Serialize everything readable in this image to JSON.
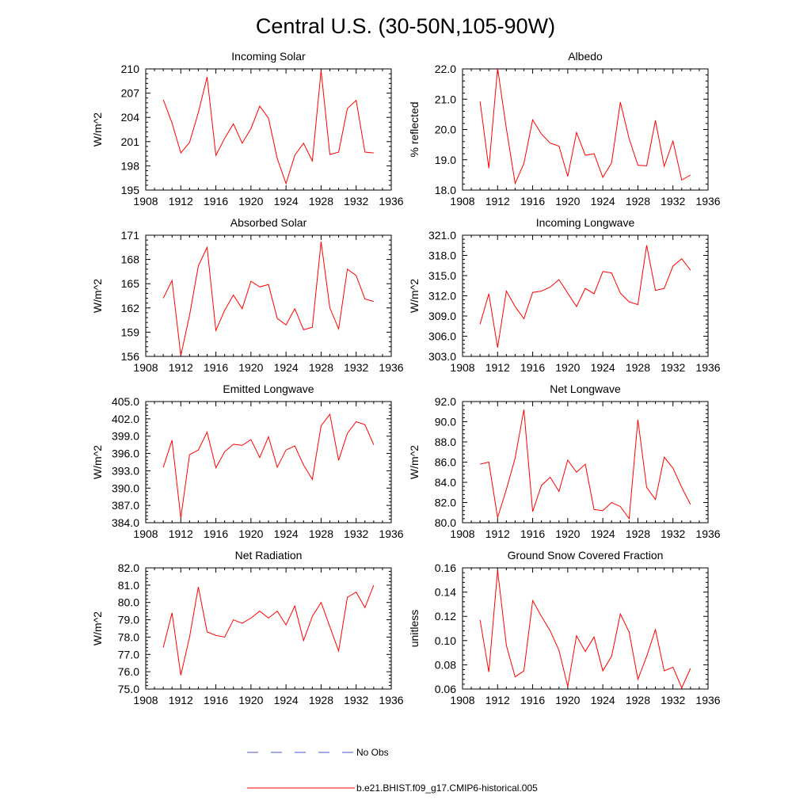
{
  "title": "Central U.S. (30-50N,105-90W)",
  "colors": {
    "model_line": "#ff0000",
    "obs_line": "#4a57c8",
    "axis": "#000000"
  },
  "legend": {
    "entries": [
      {
        "label": "No Obs",
        "style": "dashed",
        "color": "#4a57c8"
      },
      {
        "label": "b.e21.BHIST.f09_g17.CMIP6-historical.005",
        "style": "solid",
        "color": "#ff0000"
      }
    ]
  },
  "chart_data": [
    {
      "type": "line",
      "title": "Incoming Solar",
      "ylabel": "W/m^2",
      "xlim": [
        1908,
        1936
      ],
      "ylim": [
        195,
        210
      ],
      "xticks": [
        1908,
        1912,
        1916,
        1920,
        1924,
        1928,
        1932,
        1936
      ],
      "yticks": [
        195,
        198,
        201,
        204,
        207,
        210
      ],
      "ydecimals": 0,
      "x": [
        1910,
        1911,
        1912,
        1913,
        1914,
        1915,
        1916,
        1917,
        1918,
        1919,
        1920,
        1921,
        1922,
        1923,
        1924,
        1925,
        1926,
        1927,
        1928,
        1929,
        1930,
        1931,
        1932,
        1933,
        1934
      ],
      "series": [
        {
          "name": "b.e21.BHIST.f09_g17.CMIP6-historical.005",
          "values": [
            206.2,
            203.3,
            199.6,
            200.9,
            204.6,
            209.0,
            199.3,
            201.4,
            203.2,
            200.8,
            202.6,
            205.4,
            203.9,
            198.9,
            195.8,
            199.3,
            200.8,
            198.6,
            209.8,
            199.4,
            199.7,
            205.1,
            206.1,
            199.7,
            199.6
          ]
        }
      ]
    },
    {
      "type": "line",
      "title": "Albedo",
      "ylabel": "% reflected",
      "xlim": [
        1908,
        1936
      ],
      "ylim": [
        18.0,
        22.0
      ],
      "xticks": [
        1908,
        1912,
        1916,
        1920,
        1924,
        1928,
        1932,
        1936
      ],
      "yticks": [
        18.0,
        19.0,
        20.0,
        21.0,
        22.0
      ],
      "ydecimals": 1,
      "x": [
        1910,
        1911,
        1912,
        1913,
        1914,
        1915,
        1916,
        1917,
        1918,
        1919,
        1920,
        1921,
        1922,
        1923,
        1924,
        1925,
        1926,
        1927,
        1928,
        1929,
        1930,
        1931,
        1932,
        1933,
        1934
      ],
      "series": [
        {
          "name": "b.e21.BHIST.f09_g17.CMIP6-historical.005",
          "values": [
            20.93,
            18.72,
            22.02,
            20.03,
            18.22,
            18.88,
            20.32,
            19.85,
            19.55,
            19.45,
            18.45,
            19.9,
            19.15,
            19.2,
            18.42,
            18.9,
            20.9,
            19.7,
            18.82,
            18.8,
            20.3,
            18.78,
            19.62,
            18.33,
            18.5
          ]
        }
      ]
    },
    {
      "type": "line",
      "title": "Absorbed Solar",
      "ylabel": "W/m^2",
      "xlim": [
        1908,
        1936
      ],
      "ylim": [
        156,
        171
      ],
      "xticks": [
        1908,
        1912,
        1916,
        1920,
        1924,
        1928,
        1932,
        1936
      ],
      "yticks": [
        156,
        159,
        162,
        165,
        168,
        171
      ],
      "ydecimals": 0,
      "x": [
        1910,
        1911,
        1912,
        1913,
        1914,
        1915,
        1916,
        1917,
        1918,
        1919,
        1920,
        1921,
        1922,
        1923,
        1924,
        1925,
        1926,
        1927,
        1928,
        1929,
        1930,
        1931,
        1932,
        1933,
        1934
      ],
      "series": [
        {
          "name": "b.e21.BHIST.f09_g17.CMIP6-historical.005",
          "values": [
            163.2,
            165.4,
            156.1,
            161.1,
            167.2,
            169.5,
            159.2,
            161.7,
            163.6,
            161.9,
            165.3,
            164.6,
            164.9,
            160.7,
            159.9,
            161.9,
            159.3,
            159.6,
            170.2,
            162.0,
            159.4,
            166.8,
            166.0,
            163.1,
            162.8
          ]
        }
      ]
    },
    {
      "type": "line",
      "title": "Incoming Longwave",
      "ylabel": "W/m^2",
      "xlim": [
        1908,
        1936
      ],
      "ylim": [
        303.0,
        321.0
      ],
      "xticks": [
        1908,
        1912,
        1916,
        1920,
        1924,
        1928,
        1932,
        1936
      ],
      "yticks": [
        303.0,
        306.0,
        309.0,
        312.0,
        315.0,
        318.0,
        321.0
      ],
      "ydecimals": 1,
      "x": [
        1910,
        1911,
        1912,
        1913,
        1914,
        1915,
        1916,
        1917,
        1918,
        1919,
        1920,
        1921,
        1922,
        1923,
        1924,
        1925,
        1926,
        1927,
        1928,
        1929,
        1930,
        1931,
        1932,
        1933,
        1934
      ],
      "series": [
        {
          "name": "b.e21.BHIST.f09_g17.CMIP6-historical.005",
          "values": [
            307.8,
            312.3,
            304.3,
            312.7,
            310.4,
            308.6,
            312.5,
            312.7,
            313.3,
            314.4,
            312.4,
            310.4,
            313.1,
            312.3,
            315.6,
            315.4,
            312.4,
            311.1,
            310.7,
            319.5,
            312.8,
            313.1,
            316.4,
            317.5,
            315.8
          ]
        }
      ]
    },
    {
      "type": "line",
      "title": "Emitted Longwave",
      "ylabel": "W/m^2",
      "xlim": [
        1908,
        1936
      ],
      "ylim": [
        384.0,
        405.0
      ],
      "xticks": [
        1908,
        1912,
        1916,
        1920,
        1924,
        1928,
        1932,
        1936
      ],
      "yticks": [
        384.0,
        387.0,
        390.0,
        393.0,
        396.0,
        399.0,
        402.0,
        405.0
      ],
      "ydecimals": 1,
      "x": [
        1910,
        1911,
        1912,
        1913,
        1914,
        1915,
        1916,
        1917,
        1918,
        1919,
        1920,
        1921,
        1922,
        1923,
        1924,
        1925,
        1926,
        1927,
        1928,
        1929,
        1930,
        1931,
        1932,
        1933,
        1934
      ],
      "series": [
        {
          "name": "b.e21.BHIST.f09_g17.CMIP6-historical.005",
          "values": [
            393.6,
            398.3,
            384.8,
            395.8,
            396.6,
            399.7,
            393.5,
            396.3,
            397.6,
            397.4,
            398.4,
            395.3,
            398.9,
            393.6,
            396.6,
            397.3,
            394.0,
            391.5,
            400.8,
            402.8,
            394.8,
            399.5,
            401.5,
            401.0,
            397.5
          ]
        }
      ]
    },
    {
      "type": "line",
      "title": "Net Longwave",
      "ylabel": "W/m^2",
      "xlim": [
        1908,
        1936
      ],
      "ylim": [
        80.0,
        92.0
      ],
      "xticks": [
        1908,
        1912,
        1916,
        1920,
        1924,
        1928,
        1932,
        1936
      ],
      "yticks": [
        80.0,
        82.0,
        84.0,
        86.0,
        88.0,
        90.0,
        92.0
      ],
      "ydecimals": 1,
      "x": [
        1910,
        1911,
        1912,
        1913,
        1914,
        1915,
        1916,
        1917,
        1918,
        1919,
        1920,
        1921,
        1922,
        1923,
        1924,
        1925,
        1926,
        1927,
        1928,
        1929,
        1930,
        1931,
        1932,
        1933,
        1934
      ],
      "series": [
        {
          "name": "b.e21.BHIST.f09_g17.CMIP6-historical.005",
          "values": [
            85.8,
            86.0,
            80.5,
            83.3,
            86.4,
            91.2,
            81.1,
            83.7,
            84.5,
            83.1,
            86.2,
            85.0,
            85.8,
            81.3,
            81.2,
            82.0,
            81.6,
            80.4,
            90.2,
            83.5,
            82.3,
            86.5,
            85.4,
            83.5,
            81.8
          ]
        }
      ]
    },
    {
      "type": "line",
      "title": "Net Radiation",
      "ylabel": "W/m^2",
      "xlim": [
        1908,
        1936
      ],
      "ylim": [
        75.0,
        82.0
      ],
      "xticks": [
        1908,
        1912,
        1916,
        1920,
        1924,
        1928,
        1932,
        1936
      ],
      "yticks": [
        75.0,
        76.0,
        77.0,
        78.0,
        79.0,
        80.0,
        81.0,
        82.0
      ],
      "ydecimals": 1,
      "x": [
        1910,
        1911,
        1912,
        1913,
        1914,
        1915,
        1916,
        1917,
        1918,
        1919,
        1920,
        1921,
        1922,
        1923,
        1924,
        1925,
        1926,
        1927,
        1928,
        1929,
        1930,
        1931,
        1932,
        1933,
        1934
      ],
      "series": [
        {
          "name": "b.e21.BHIST.f09_g17.CMIP6-historical.005",
          "values": [
            77.4,
            79.4,
            75.8,
            78.0,
            80.9,
            78.3,
            78.1,
            78.0,
            79.0,
            78.8,
            79.1,
            79.5,
            79.1,
            79.5,
            78.7,
            79.8,
            77.8,
            79.2,
            80.0,
            78.6,
            77.2,
            80.3,
            80.6,
            79.7,
            81.0
          ]
        }
      ]
    },
    {
      "type": "line",
      "title": "Ground Snow Covered Fraction",
      "ylabel": "unitless",
      "xlim": [
        1908,
        1936
      ],
      "ylim": [
        0.06,
        0.16
      ],
      "xticks": [
        1908,
        1912,
        1916,
        1920,
        1924,
        1928,
        1932,
        1936
      ],
      "yticks": [
        0.06,
        0.08,
        0.1,
        0.12,
        0.14,
        0.16
      ],
      "ydecimals": 2,
      "x": [
        1910,
        1911,
        1912,
        1913,
        1914,
        1915,
        1916,
        1917,
        1918,
        1919,
        1920,
        1921,
        1922,
        1923,
        1924,
        1925,
        1926,
        1927,
        1928,
        1929,
        1930,
        1931,
        1932,
        1933,
        1934
      ],
      "series": [
        {
          "name": "b.e21.BHIST.f09_g17.CMIP6-historical.005",
          "values": [
            0.117,
            0.074,
            0.158,
            0.096,
            0.07,
            0.075,
            0.133,
            0.12,
            0.108,
            0.092,
            0.062,
            0.104,
            0.091,
            0.103,
            0.075,
            0.087,
            0.122,
            0.107,
            0.068,
            0.087,
            0.109,
            0.075,
            0.078,
            0.061,
            0.077
          ]
        }
      ]
    }
  ]
}
